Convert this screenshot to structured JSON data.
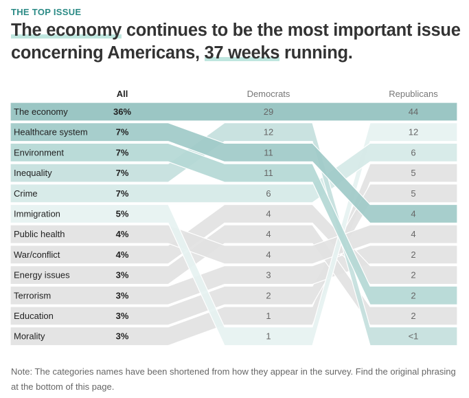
{
  "header": {
    "kicker": "THE TOP ISSUE",
    "title_hl1": "The economy",
    "title_mid": " continues to be the most important issue concerning Americans, ",
    "title_hl2": "37 weeks",
    "title_end": " running."
  },
  "note": "Note: The categories names have been shortened from how they appear in the survey. Find the original phrasing at the bottom of this page.",
  "chart_data": {
    "type": "table",
    "columns": [
      "All",
      "Democrats",
      "Republicans"
    ],
    "issues": [
      {
        "name": "The economy",
        "all": "36%",
        "dem": "29",
        "rep": "44",
        "dem_rank": 0,
        "rep_rank": 0,
        "color": "#93c1bf"
      },
      {
        "name": "Healthcare system",
        "all": "7%",
        "dem": "11",
        "rep": "4",
        "dem_rank": 2,
        "rep_rank": 5,
        "color": "#a0cac8"
      },
      {
        "name": "Environment",
        "all": "7%",
        "dem": "11",
        "rep": "2",
        "dem_rank": 3,
        "rep_rank": 9,
        "color": "#b4d8d5"
      },
      {
        "name": "Inequality",
        "all": "7%",
        "dem": "12",
        "rep": "<1",
        "dem_rank": 1,
        "rep_rank": 11,
        "color": "#c4dfdd"
      },
      {
        "name": "Crime",
        "all": "7%",
        "dem": "6",
        "rep": "6",
        "dem_rank": 4,
        "rep_rank": 2,
        "color": "#d5e9e7"
      },
      {
        "name": "Immigration",
        "all": "5%",
        "dem": "1",
        "rep": "12",
        "dem_rank": 11,
        "rep_rank": 1,
        "color": "#e6f2f1"
      },
      {
        "name": "Public health",
        "all": "4%",
        "dem": "4",
        "rep": "4",
        "dem_rank": 7,
        "rep_rank": 6,
        "color": "#e2e2e2"
      },
      {
        "name": "War/conflict",
        "all": "4%",
        "dem": "4",
        "rep": "2",
        "dem_rank": 5,
        "rep_rank": 8,
        "color": "#e2e2e2"
      },
      {
        "name": "Energy issues",
        "all": "3%",
        "dem": "4",
        "rep": "2",
        "dem_rank": 6,
        "rep_rank": 10,
        "color": "#e2e2e2"
      },
      {
        "name": "Terrorism",
        "all": "3%",
        "dem": "3",
        "rep": "2",
        "dem_rank": 8,
        "rep_rank": 7,
        "color": "#e2e2e2"
      },
      {
        "name": "Education",
        "all": "3%",
        "dem": "2",
        "rep": "5",
        "dem_rank": 9,
        "rep_rank": 4,
        "color": "#e2e2e2"
      },
      {
        "name": "Morality",
        "all": "3%",
        "dem": "1",
        "rep": "5",
        "dem_rank": 10,
        "rep_rank": 3,
        "color": "#e2e2e2"
      }
    ]
  }
}
